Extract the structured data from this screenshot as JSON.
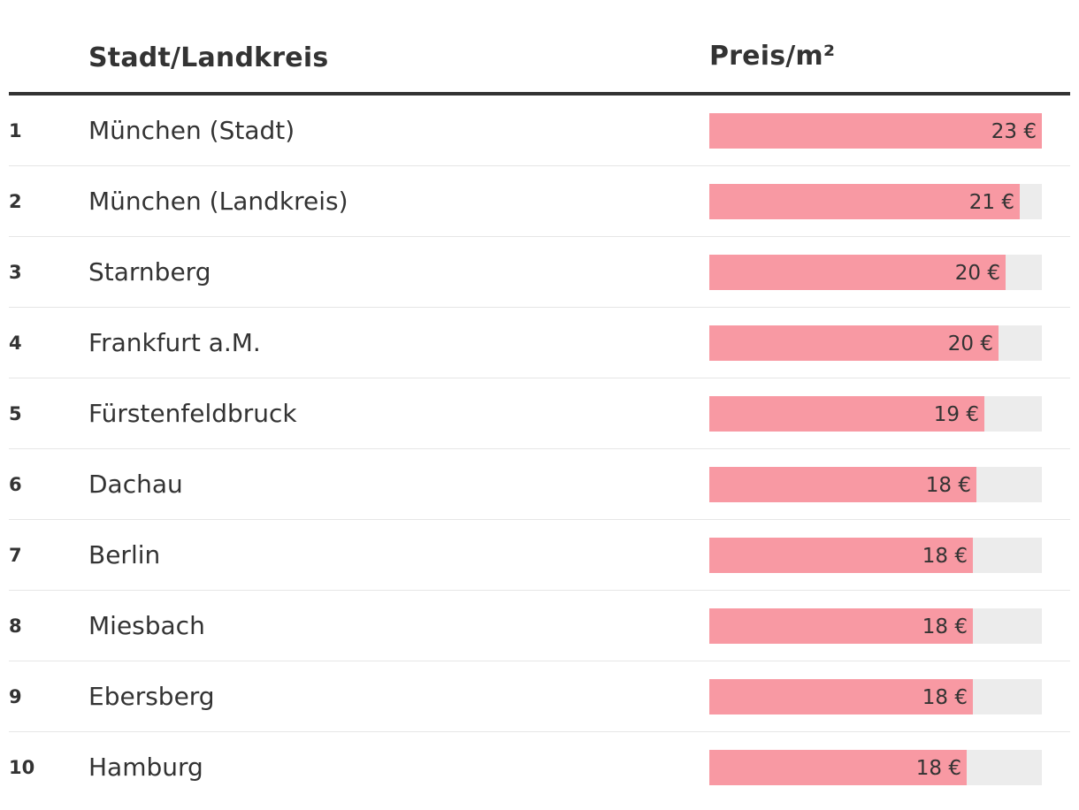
{
  "header": {
    "city_label": "Stadt/Landkreis",
    "price_label": "Preis/m²"
  },
  "colors": {
    "bar": "#f899a3",
    "track": "#ececec",
    "text": "#333333"
  },
  "chart_data": {
    "type": "bar",
    "orientation": "horizontal",
    "xlim": [
      0,
      23
    ],
    "ranks": [
      "1",
      "2",
      "3",
      "4",
      "5",
      "6",
      "7",
      "8",
      "9",
      "10"
    ],
    "categories": [
      "München (Stadt)",
      "München (Landkreis)",
      "Starnberg",
      "Frankfurt a.M.",
      "Fürstenfeldbruck",
      "Dachau",
      "Berlin",
      "Miesbach",
      "Ebersberg",
      "Hamburg"
    ],
    "values": [
      23.0,
      21.5,
      20.5,
      20.0,
      19.0,
      18.5,
      18.2,
      18.2,
      18.2,
      17.8
    ],
    "labels": [
      "23 €",
      "21 €",
      "20 €",
      "20 €",
      "19 €",
      "18 €",
      "18 €",
      "18 €",
      "18 €",
      "18 €"
    ]
  }
}
